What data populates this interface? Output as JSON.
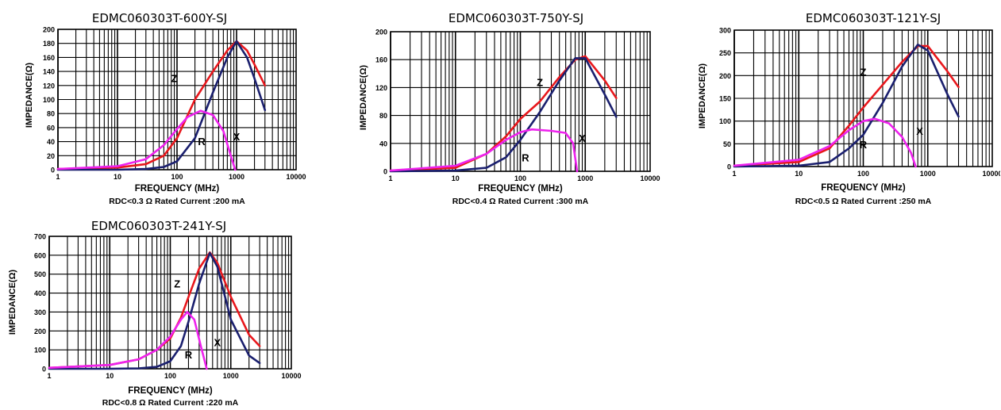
{
  "chart_data": [
    {
      "type": "line",
      "title": "EDMC060303T-600Y-SJ",
      "xlabel": "FREQUENCY (MHz)",
      "ylabel": "IMPEDANCE(Ω)",
      "note": "RDC<0.3 Ω Rated Current :200 mA",
      "xscale": "log",
      "xlim": [
        1,
        10000
      ],
      "ylim": [
        0,
        200
      ],
      "xticks": [
        "1",
        "10",
        "100",
        "1000",
        "10000"
      ],
      "yticks": [
        "0",
        "20",
        "40",
        "60",
        "80",
        "100",
        "120",
        "140",
        "160",
        "180",
        "200"
      ],
      "grid": true,
      "series": [
        {
          "name": "Z",
          "color": "#e8171c",
          "x": [
            1,
            10,
            30,
            60,
            100,
            200,
            400,
            700,
            1000,
            1500,
            2000,
            3000
          ],
          "y": [
            1,
            3,
            8,
            20,
            45,
            100,
            140,
            170,
            183,
            170,
            150,
            120
          ]
        },
        {
          "name": "X",
          "color": "#1a1f6e",
          "x": [
            1,
            10,
            30,
            60,
            100,
            200,
            400,
            700,
            1000,
            1500,
            2000,
            3000
          ],
          "y": [
            0,
            0,
            1,
            4,
            12,
            45,
            110,
            160,
            183,
            160,
            130,
            85
          ]
        },
        {
          "name": "R",
          "color": "#ee22ee",
          "x": [
            1,
            10,
            30,
            60,
            100,
            150,
            250,
            400,
            600,
            800,
            950
          ],
          "y": [
            1,
            5,
            15,
            35,
            58,
            75,
            84,
            78,
            55,
            20,
            0
          ]
        }
      ],
      "labels": [
        {
          "text": "Z",
          "x": 90,
          "y": 125
        },
        {
          "text": "R",
          "x": 260,
          "y": 35
        },
        {
          "text": "X",
          "x": 1000,
          "y": 42
        }
      ]
    },
    {
      "type": "line",
      "title": "EDMC060303T-750Y-SJ",
      "xlabel": "FREQUENCY (MHz)",
      "ylabel": "IMPEDANCE(Ω)",
      "note": "RDC<0.4 Ω Rated Current :300 mA",
      "xscale": "log",
      "xlim": [
        1,
        10000
      ],
      "ylim": [
        0,
        200
      ],
      "xticks": [
        "1",
        "10",
        "100",
        "1000",
        "10000"
      ],
      "yticks": [
        "0",
        "40",
        "80",
        "120",
        "160",
        "200"
      ],
      "grid": true,
      "series": [
        {
          "name": "Z",
          "color": "#e8171c",
          "x": [
            1,
            10,
            30,
            60,
            100,
            200,
            400,
            700,
            1000,
            2000,
            3000
          ],
          "y": [
            1,
            5,
            25,
            50,
            75,
            100,
            135,
            160,
            165,
            130,
            105
          ]
        },
        {
          "name": "X",
          "color": "#1a1f6e",
          "x": [
            1,
            10,
            30,
            60,
            100,
            200,
            400,
            700,
            1000,
            2000,
            3000
          ],
          "y": [
            0,
            1,
            5,
            20,
            45,
            85,
            130,
            162,
            162,
            110,
            78
          ]
        },
        {
          "name": "R",
          "color": "#ee22ee",
          "x": [
            1,
            10,
            30,
            60,
            100,
            150,
            300,
            500,
            650,
            750
          ],
          "y": [
            1,
            8,
            25,
            45,
            56,
            60,
            58,
            55,
            40,
            0
          ]
        }
      ],
      "labels": [
        {
          "text": "Z",
          "x": 200,
          "y": 122
        },
        {
          "text": "R",
          "x": 120,
          "y": 14
        },
        {
          "text": "X",
          "x": 900,
          "y": 42
        }
      ]
    },
    {
      "type": "line",
      "title": "EDMC060303T-121Y-SJ",
      "xlabel": "FREQUENCY (MHz)",
      "ylabel": "IMPEDANCE(Ω)",
      "note": "RDC<0.5 Ω Rated Current :250 mA",
      "xscale": "log",
      "xlim": [
        1,
        10000
      ],
      "ylim": [
        0,
        300
      ],
      "xticks": [
        "1",
        "10",
        "100",
        "1000",
        "10000"
      ],
      "yticks": [
        "0",
        "50",
        "100",
        "150",
        "200",
        "250",
        "300"
      ],
      "grid": true,
      "series": [
        {
          "name": "Z",
          "color": "#e8171c",
          "x": [
            1,
            10,
            30,
            60,
            100,
            200,
            400,
            700,
            1000,
            2000,
            3000
          ],
          "y": [
            2,
            10,
            40,
            90,
            130,
            180,
            230,
            265,
            265,
            210,
            175
          ]
        },
        {
          "name": "X",
          "color": "#1a1f6e",
          "x": [
            1,
            10,
            30,
            60,
            100,
            200,
            400,
            700,
            1000,
            2000,
            3000
          ],
          "y": [
            0,
            2,
            10,
            40,
            70,
            140,
            220,
            268,
            255,
            160,
            110
          ]
        },
        {
          "name": "R",
          "color": "#ee22ee",
          "x": [
            1,
            10,
            30,
            60,
            100,
            150,
            250,
            400,
            550,
            650
          ],
          "y": [
            2,
            15,
            45,
            80,
            100,
            105,
            95,
            65,
            30,
            0
          ]
        }
      ],
      "labels": [
        {
          "text": "Z",
          "x": 100,
          "y": 200
        },
        {
          "text": "R",
          "x": 100,
          "y": 40
        },
        {
          "text": "X",
          "x": 750,
          "y": 70
        }
      ]
    },
    {
      "type": "line",
      "title": "EDMC060303T-241Y-SJ",
      "xlabel": "FREQUENCY (MHz)",
      "ylabel": "IMPEDANCE(Ω)",
      "note": "RDC<0.8 Ω Rated Current :220 mA",
      "xscale": "log",
      "xlim": [
        1,
        10000
      ],
      "ylim": [
        0,
        700
      ],
      "xticks": [
        "1",
        "10",
        "100",
        "1000",
        "10000"
      ],
      "yticks": [
        "0",
        "100",
        "200",
        "300",
        "400",
        "500",
        "600",
        "700"
      ],
      "grid": true,
      "series": [
        {
          "name": "Z",
          "color": "#e8171c",
          "x": [
            1,
            10,
            30,
            60,
            100,
            150,
            200,
            300,
            450,
            600,
            1000,
            2000,
            3000
          ],
          "y": [
            5,
            20,
            50,
            100,
            160,
            270,
            380,
            530,
            615,
            560,
            380,
            180,
            120
          ]
        },
        {
          "name": "X",
          "color": "#1a1f6e",
          "x": [
            1,
            10,
            30,
            60,
            100,
            150,
            200,
            300,
            450,
            600,
            1000,
            2000,
            3000
          ],
          "y": [
            0,
            0,
            2,
            10,
            40,
            120,
            250,
            450,
            612,
            540,
            260,
            70,
            30
          ]
        },
        {
          "name": "R",
          "color": "#ee22ee",
          "x": [
            1,
            10,
            30,
            60,
            100,
            150,
            190,
            250,
            320,
            400
          ],
          "y": [
            5,
            20,
            50,
            100,
            170,
            260,
            300,
            260,
            120,
            0
          ]
        }
      ],
      "labels": [
        {
          "text": "Z",
          "x": 130,
          "y": 430
        },
        {
          "text": "R",
          "x": 200,
          "y": 55
        },
        {
          "text": "X",
          "x": 600,
          "y": 120
        }
      ]
    }
  ]
}
